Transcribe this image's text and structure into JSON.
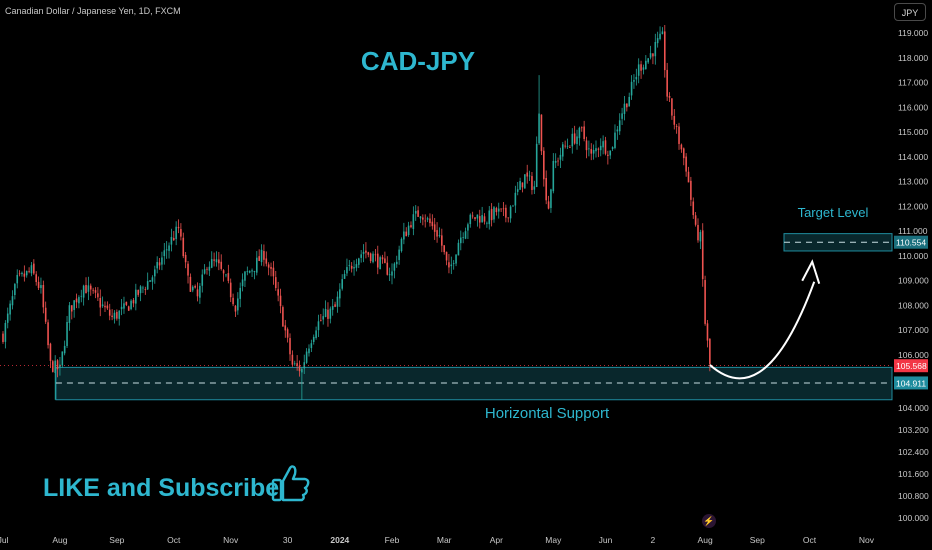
{
  "header": {
    "symbol_label": "Canadian Dollar / Japanese Yen, 1D, FXCM",
    "currency_button": "JPY"
  },
  "chart_data": {
    "type": "candlestick",
    "title": "CAD-JPY",
    "ylim": [
      99.8,
      119.6
    ],
    "y_ticks": [
      "119.000",
      "118.000",
      "117.000",
      "116.000",
      "115.000",
      "114.000",
      "113.000",
      "112.000",
      "111.000",
      "110.000",
      "109.000",
      "108.000",
      "107.000",
      "106.000",
      "104.000",
      "103.200",
      "102.400",
      "101.600",
      "100.800",
      "100.000"
    ],
    "y_tick_values": [
      119,
      118,
      117,
      116,
      115,
      114,
      113,
      112,
      111,
      110,
      109,
      108,
      107,
      106,
      104,
      103.2,
      102.4,
      101.6,
      100.8,
      100
    ],
    "x_ticks": [
      "Jul",
      "Aug",
      "Sep",
      "Oct",
      "Nov",
      "30",
      "2024",
      "Feb",
      "Mar",
      "Apr",
      "May",
      "Jun",
      "2",
      "Aug",
      "Sep",
      "Oct",
      "Nov"
    ],
    "x_tick_index": [
      0,
      24,
      48,
      72,
      96,
      120,
      142,
      164,
      186,
      208,
      232,
      254,
      274,
      296,
      318,
      340,
      364
    ],
    "last_price_label": "105.568",
    "support_price_label": "104.911",
    "target_price_label": "110.554",
    "zones": [
      {
        "name": "Horizontal Support",
        "from": 104.3,
        "to": 105.5,
        "mid": 104.911
      },
      {
        "name": "Target Level",
        "from": 110.2,
        "to": 110.9,
        "mid": 110.554
      }
    ],
    "path_points": [
      [
        0,
        106.8
      ],
      [
        6,
        109.0
      ],
      [
        12,
        109.4
      ],
      [
        16,
        108.6
      ],
      [
        20,
        105.6
      ],
      [
        24,
        105.4
      ],
      [
        28,
        107.8
      ],
      [
        34,
        108.8
      ],
      [
        40,
        108.2
      ],
      [
        46,
        107.5
      ],
      [
        52,
        107.9
      ],
      [
        58,
        108.6
      ],
      [
        64,
        109.3
      ],
      [
        70,
        110.5
      ],
      [
        74,
        111.1
      ],
      [
        78,
        109.0
      ],
      [
        82,
        108.3
      ],
      [
        86,
        109.7
      ],
      [
        90,
        109.7
      ],
      [
        94,
        109.0
      ],
      [
        98,
        108.0
      ],
      [
        102,
        109.2
      ],
      [
        106,
        109.6
      ],
      [
        110,
        110.1
      ],
      [
        114,
        109.0
      ],
      [
        118,
        107.4
      ],
      [
        122,
        105.6
      ],
      [
        126,
        105.4
      ],
      [
        128,
        106.2
      ],
      [
        132,
        107.2
      ],
      [
        136,
        107.6
      ],
      [
        140,
        107.9
      ],
      [
        144,
        109.2
      ],
      [
        148,
        109.8
      ],
      [
        152,
        110.2
      ],
      [
        156,
        110.0
      ],
      [
        160,
        109.6
      ],
      [
        164,
        109.3
      ],
      [
        168,
        110.6
      ],
      [
        172,
        111.4
      ],
      [
        176,
        111.8
      ],
      [
        180,
        111.3
      ],
      [
        184,
        110.8
      ],
      [
        188,
        109.3
      ],
      [
        192,
        110.6
      ],
      [
        196,
        111.4
      ],
      [
        200,
        111.6
      ],
      [
        204,
        111.5
      ],
      [
        208,
        111.8
      ],
      [
        212,
        111.6
      ],
      [
        216,
        112.4
      ],
      [
        220,
        113.2
      ],
      [
        224,
        112.8
      ],
      [
        226,
        116.0
      ],
      [
        228,
        113.0
      ],
      [
        230,
        112.0
      ],
      [
        232,
        113.6
      ],
      [
        236,
        114.3
      ],
      [
        240,
        114.7
      ],
      [
        244,
        115.0
      ],
      [
        248,
        114.0
      ],
      [
        252,
        114.6
      ],
      [
        256,
        114.2
      ],
      [
        260,
        115.6
      ],
      [
        264,
        116.5
      ],
      [
        268,
        117.6
      ],
      [
        272,
        118.0
      ],
      [
        276,
        118.6
      ],
      [
        278,
        118.8
      ],
      [
        280,
        116.5
      ],
      [
        284,
        115.0
      ],
      [
        288,
        113.6
      ],
      [
        292,
        111.0
      ],
      [
        294,
        110.7
      ],
      [
        296,
        107.3
      ],
      [
        298,
        105.6
      ]
    ],
    "projection_points": [
      [
        298,
        105.6
      ],
      [
        310,
        104.9
      ],
      [
        330,
        106.3
      ],
      [
        342,
        109.2
      ]
    ]
  },
  "annotations": {
    "target_label": "Target Level",
    "support_label": "Horizontal Support",
    "cta_text": "LIKE and Subscribe",
    "cta_icon": "thumbs-up-icon"
  },
  "colors": {
    "up": "#26a69a",
    "down": "#ef5350",
    "zone": "#1f8c9e",
    "title": "#2eb7cf",
    "last_price": "#f23645"
  }
}
